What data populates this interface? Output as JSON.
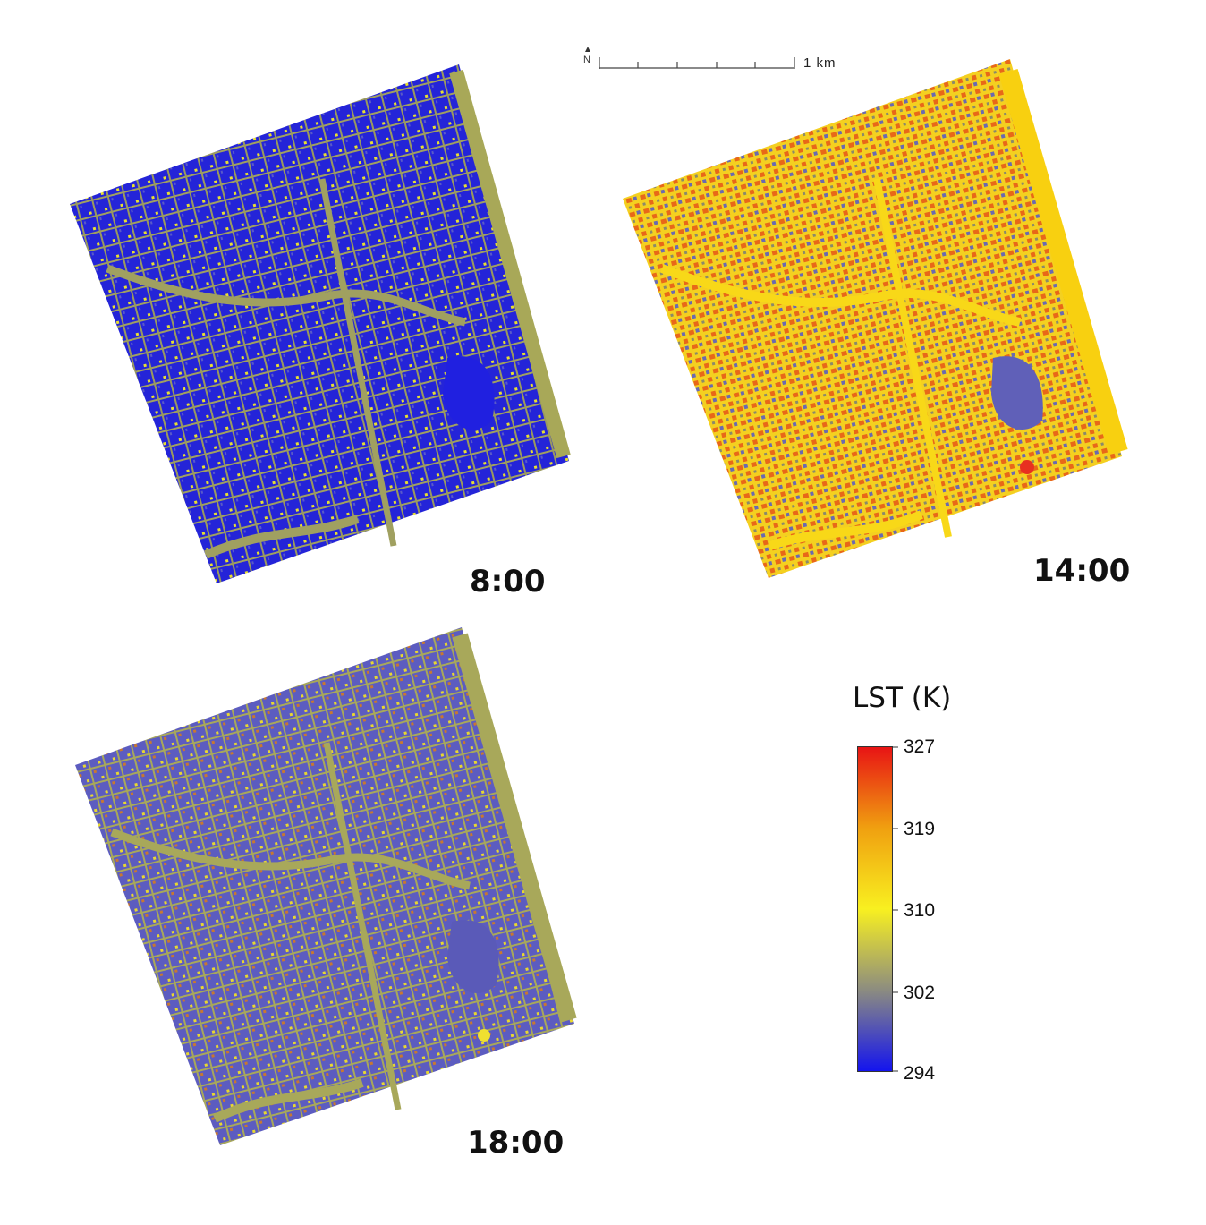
{
  "colors": {
    "cold": "#1a1ae6",
    "cool": "#5a5ac8",
    "neutral": "#9a9a66",
    "olive": "#a8a85a",
    "warm": "#f0e030",
    "hot": "#f07020",
    "hottest": "#e81414"
  },
  "scale": {
    "label": "1  km",
    "north_icon": "north-arrow-icon"
  },
  "panels": [
    {
      "time": "8:00",
      "tone": "cold"
    },
    {
      "time": "14:00",
      "tone": "hot"
    },
    {
      "time": "18:00",
      "tone": "mixed"
    }
  ],
  "legend": {
    "title": "LST (K)",
    "ticks": [
      "327",
      "319",
      "310",
      "302",
      "294"
    ],
    "colors": [
      "#e81414",
      "#f0a010",
      "#f8f020",
      "#8c8c80",
      "#1414ee"
    ]
  }
}
